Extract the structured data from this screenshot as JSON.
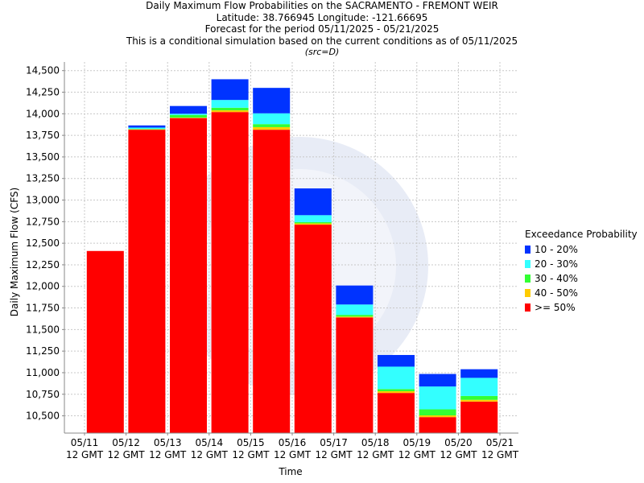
{
  "titles": {
    "line1": "Daily Maximum Flow Probabilities on the SACRAMENTO - FREMONT WEIR",
    "line2": "Latitude: 38.766945 Longitude: -121.66695",
    "line3": "Forecast for the period 05/11/2025 - 05/21/2025",
    "line4": "This is a conditional simulation based on the current conditions as of 05/11/2025",
    "line5": "(src=D)"
  },
  "colors": {
    "p10_20": "#0033ff",
    "p20_30": "#33ffff",
    "p30_40": "#33ff33",
    "p40_50": "#ffcc00",
    "p50": "#ff0000"
  },
  "chart_data": {
    "type": "bar",
    "stacked": true,
    "title": "",
    "xlabel": "Time",
    "ylabel": "Daily Maximum Flow (CFS)",
    "ylim": [
      10300,
      14600
    ],
    "yticks": [
      10500,
      10750,
      11000,
      11250,
      11500,
      11750,
      12000,
      12250,
      12500,
      12750,
      13000,
      13250,
      13500,
      13750,
      14000,
      14250,
      14500
    ],
    "ytick_labels": [
      "10,500",
      "10,750",
      "11,000",
      "11,250",
      "11,500",
      "11,750",
      "12,000",
      "12,250",
      "12,500",
      "12,750",
      "13,000",
      "13,250",
      "13,500",
      "13,750",
      "14,000",
      "14,250",
      "14,500"
    ],
    "xtick_labels": [
      [
        "05/11",
        "12 GMT"
      ],
      [
        "05/12",
        "12 GMT"
      ],
      [
        "05/13",
        "12 GMT"
      ],
      [
        "05/14",
        "12 GMT"
      ],
      [
        "05/15",
        "12 GMT"
      ],
      [
        "05/16",
        "12 GMT"
      ],
      [
        "05/17",
        "12 GMT"
      ],
      [
        "05/18",
        "12 GMT"
      ],
      [
        "05/19",
        "12 GMT"
      ],
      [
        "05/20",
        "12 GMT"
      ],
      [
        "05/21",
        "12 GMT"
      ]
    ],
    "grid": true,
    "legend_position": "right",
    "legend_title": "Exceedance Probability",
    "bars": [
      {
        "date": "05/11",
        "p50": 12410,
        "p40_50": 12410,
        "p30_40": 12410,
        "p20_30": 12410,
        "p10_20": 12410
      },
      {
        "date": "05/12",
        "p50": 13815,
        "p40_50": 13820,
        "p30_40": 13825,
        "p20_30": 13840,
        "p10_20": 13865
      },
      {
        "date": "05/13",
        "p50": 13950,
        "p40_50": 13955,
        "p30_40": 13985,
        "p20_30": 14000,
        "p10_20": 14090
      },
      {
        "date": "05/14",
        "p50": 14020,
        "p40_50": 14040,
        "p30_40": 14070,
        "p20_30": 14160,
        "p10_20": 14400
      },
      {
        "date": "05/15",
        "p50": 13815,
        "p40_50": 13845,
        "p30_40": 13880,
        "p20_30": 14005,
        "p10_20": 14300
      },
      {
        "date": "05/16",
        "p50": 12715,
        "p40_50": 12730,
        "p30_40": 12745,
        "p20_30": 12825,
        "p10_20": 13135
      },
      {
        "date": "05/17",
        "p50": 11640,
        "p40_50": 11650,
        "p30_40": 11670,
        "p20_30": 11790,
        "p10_20": 12010
      },
      {
        "date": "05/18",
        "p50": 10765,
        "p40_50": 10785,
        "p30_40": 10810,
        "p20_30": 11070,
        "p10_20": 11205
      },
      {
        "date": "05/19",
        "p50": 10485,
        "p40_50": 10505,
        "p30_40": 10575,
        "p20_30": 10840,
        "p10_20": 10985
      },
      {
        "date": "05/20",
        "p50": 10665,
        "p40_50": 10685,
        "p30_40": 10730,
        "p20_30": 10940,
        "p10_20": 11040
      }
    ],
    "series": [
      {
        "key": "p10_20",
        "name": "10 - 20%"
      },
      {
        "key": "p20_30",
        "name": "20 - 30%"
      },
      {
        "key": "p30_40",
        "name": "30 - 40%"
      },
      {
        "key": "p40_50",
        "name": "40 - 50%"
      },
      {
        "key": "p50",
        "name": ">= 50%"
      }
    ]
  }
}
